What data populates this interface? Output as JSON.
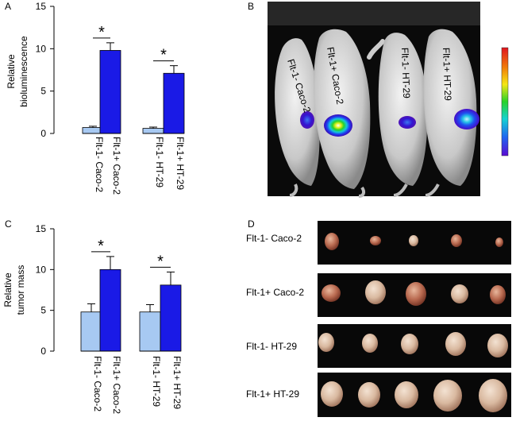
{
  "panels": {
    "a": "A",
    "b": "B",
    "c": "C",
    "d": "D"
  },
  "colors": {
    "neg_bar": "#a7c9f2",
    "pos_bar": "#1a1ae6",
    "photo_bg": "#080808"
  },
  "chart_data": [
    {
      "type": "bar",
      "panel": "A",
      "ylabel_line1": "Relative",
      "ylabel_line2": "bioluminescence",
      "ylim": [
        0,
        15
      ],
      "yticks": [
        "0",
        "5",
        "10",
        "15"
      ],
      "categories": [
        "Flt-1- Caco-2",
        "Flt-1+ Caco-2",
        "Flt-1- HT-29",
        "Flt-1+ HT-29"
      ],
      "values": [
        0.7,
        9.8,
        0.6,
        7.1
      ],
      "errors": [
        0.15,
        0.9,
        0.15,
        0.9
      ],
      "significance": [
        {
          "pair": [
            0,
            1
          ],
          "label": "*"
        },
        {
          "pair": [
            2,
            3
          ],
          "label": "*"
        }
      ]
    },
    {
      "type": "bar",
      "panel": "C",
      "ylabel_line1": "Relative",
      "ylabel_line2": "tumor mass",
      "ylim": [
        0,
        15
      ],
      "yticks": [
        "0",
        "5",
        "10",
        "15"
      ],
      "categories": [
        "Flt-1- Caco-2",
        "Flt-1+ Caco-2",
        "Flt-1- HT-29",
        "Flt-1+ HT-29"
      ],
      "values": [
        4.8,
        10.0,
        4.8,
        8.1
      ],
      "errors": [
        1.0,
        1.6,
        0.9,
        1.6
      ],
      "significance": [
        {
          "pair": [
            0,
            1
          ],
          "label": "*"
        },
        {
          "pair": [
            2,
            3
          ],
          "label": "*"
        }
      ]
    }
  ],
  "imaging": {
    "mice": [
      "Flt-1- Caco-2",
      "Flt-1+ Caco-2",
      "Flt-1- HT-29",
      "Flt-1+ HT-29"
    ]
  },
  "tumor_rows": [
    {
      "label": "Flt-1- Caco-2"
    },
    {
      "label": "Flt-1+ Caco-2"
    },
    {
      "label": "Flt-1- HT-29"
    },
    {
      "label": "Flt-1+ HT-29"
    }
  ]
}
